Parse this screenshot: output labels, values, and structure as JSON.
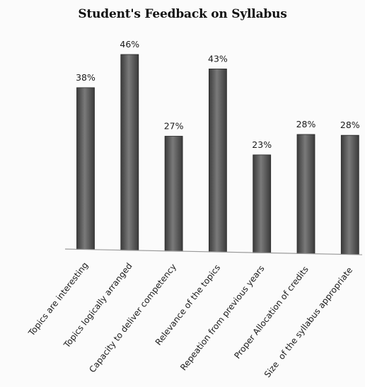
{
  "chart_data": {
    "type": "bar",
    "title": "Student's Feedback on Syllabus",
    "xlabel": "",
    "ylabel": "",
    "ylim": [
      0,
      50
    ],
    "grid": false,
    "legend": "none",
    "categories": [
      "Topics are interesting",
      "Topics logically arranged",
      "Capacity to deliver competency",
      "Relevance of the topics",
      "Repeation from previous years",
      "Proper Allocation of credits",
      "Size  of the syllabus appropriate"
    ],
    "values": [
      38,
      46,
      27,
      43,
      23,
      28,
      28
    ],
    "data_labels": [
      "38%",
      "46%",
      "27%",
      "43%",
      "23%",
      "28%",
      "28%"
    ],
    "colors": {
      "bar_dark": "#3a3a3a",
      "bar_mid": "#6e6e6e",
      "bar_light": "#9a9a9a",
      "axis": "#9a9a9a",
      "text": "#1a1a1a"
    }
  }
}
